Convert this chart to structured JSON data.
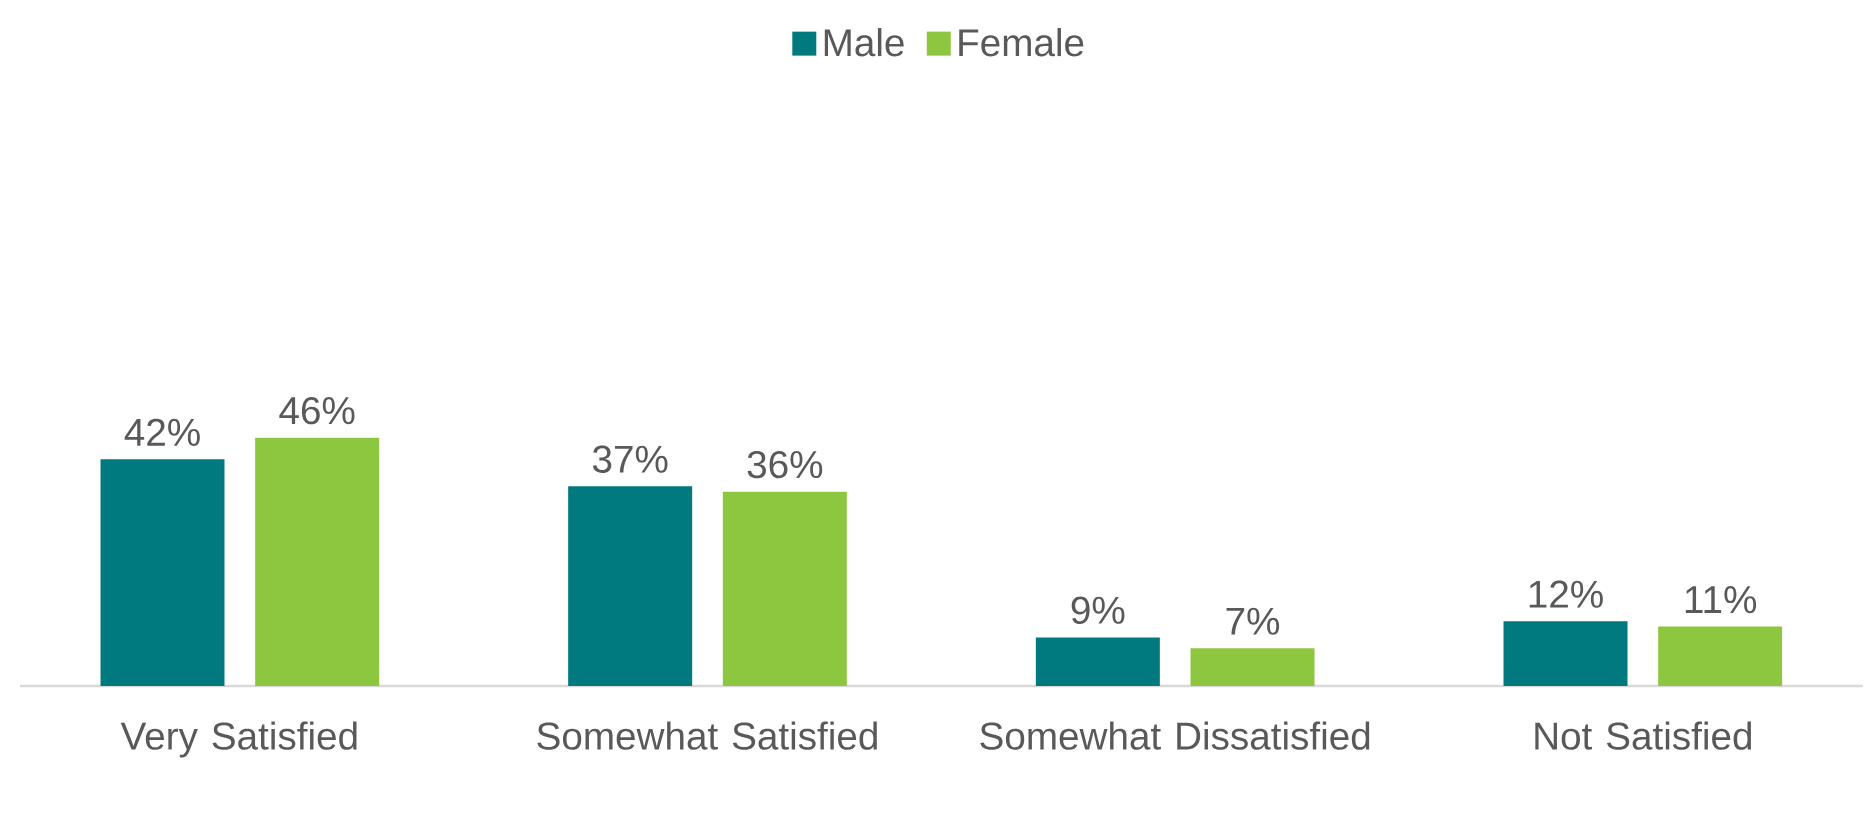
{
  "chart_data": {
    "type": "bar",
    "categories": [
      "Very Satisfied",
      "Somewhat Satisfied",
      "Somewhat Dissatisfied",
      "Not Satisfied"
    ],
    "legend": "top",
    "tick_labels": "x",
    "series": [
      {
        "name": "Male",
        "color": "#007a7e",
        "values": [
          42,
          37,
          9,
          12
        ],
        "value_labels": [
          "42%",
          "37%",
          "9%",
          "12%"
        ]
      },
      {
        "name": "Female",
        "color": "#8dc63f",
        "values": [
          46,
          36,
          7,
          11
        ],
        "value_labels": [
          "46%",
          "36%",
          "7%",
          "11%"
        ]
      }
    ]
  }
}
